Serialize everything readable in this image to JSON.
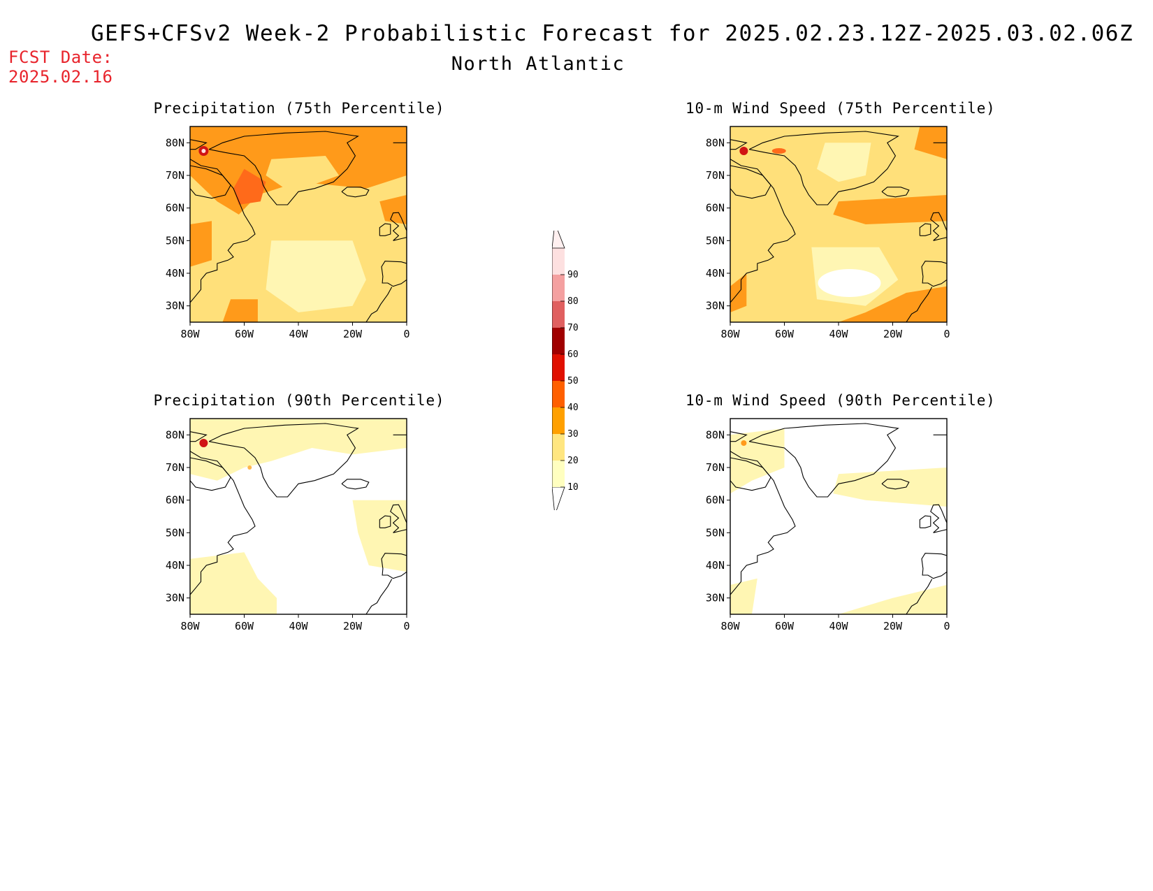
{
  "header": {
    "title": "GEFS+CFSv2 Week-2 Probabilistic Forecast for 2025.02.23.12Z-2025.03.02.06Z",
    "region": "North Atlantic",
    "fcst_label": "FCST Date:",
    "fcst_date": "2025.02.16"
  },
  "panels": [
    {
      "title": "Precipitation (75th Percentile)",
      "level": "high-precip"
    },
    {
      "title": "10-m Wind Speed (75th Percentile)",
      "level": "high-wind"
    },
    {
      "title": "Precipitation (90th Percentile)",
      "level": "low-precip"
    },
    {
      "title": "10-m Wind Speed (90th Percentile)",
      "level": "low-wind"
    }
  ],
  "axes": {
    "lon_labels": [
      "80W",
      "60W",
      "40W",
      "20W",
      "0"
    ],
    "lat_labels": [
      "80N",
      "70N",
      "60N",
      "50N",
      "40N",
      "30N"
    ]
  },
  "colorbar": {
    "levels": [
      "10",
      "20",
      "30",
      "40",
      "50",
      "60",
      "70",
      "80",
      "90"
    ],
    "colors": [
      "#ffffc0",
      "#ffe680",
      "#ffa000",
      "#ff6000",
      "#e01000",
      "#a00000",
      "#e06060",
      "#f4a0a0",
      "#fde0e0"
    ]
  },
  "colors": {
    "fcst_date": "#e8242c",
    "pale": "#fff6b3",
    "light": "#ffe07a",
    "mid": "#ffb84d",
    "orange": "#ff9a1a",
    "deep": "#ff6a1a",
    "red": "#d01414"
  }
}
